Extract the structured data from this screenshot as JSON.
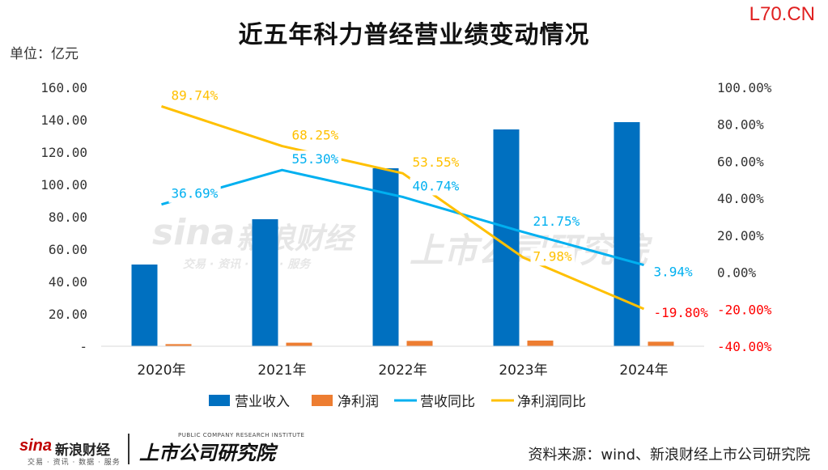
{
  "brand": "L70.CN",
  "title": "近五年科力普经营业绩变动情况",
  "unit": "单位：亿元",
  "watermark": {
    "sina": "sina",
    "sina_cn": "新浪财经",
    "sina_sub": "交易 · 资讯 · 数据 · 服务",
    "research": "上市公司研究院"
  },
  "footer": {
    "logo_sina": "sina",
    "logo_sina_cn": "新浪财经",
    "logo_sina_sub": "交易 · 资讯 · 数据 · 服务",
    "logo_research": "上市公司研究院",
    "logo_research_en": "PUBLIC COMPANY RESEARCH INSTITUTE",
    "source": "资料来源：wind、新浪财经上市公司研究院"
  },
  "colors": {
    "revenue": "#0070c0",
    "profit": "#ed7d31",
    "revenue_yoy": "#00b0f0",
    "profit_yoy": "#ffc000",
    "negative": "#ff0000"
  },
  "chart_data": {
    "type": "bar",
    "categories": [
      "2020年",
      "2021年",
      "2022年",
      "2023年",
      "2024年"
    ],
    "left_axis": {
      "ticks": [
        "160.00",
        "140.00",
        "120.00",
        "100.00",
        "80.00",
        "60.00",
        "40.00",
        "20.00",
        "-"
      ],
      "ylim": [
        0,
        160
      ]
    },
    "right_axis": {
      "ticks": [
        "100.00%",
        "80.00%",
        "60.00%",
        "40.00%",
        "20.00%",
        "0.00%",
        "-20.00%",
        "-40.00%"
      ],
      "ylim": [
        -40,
        100
      ]
    },
    "series": [
      {
        "name": "营业收入",
        "type": "bar",
        "axis": "left",
        "values": [
          50.5,
          78.5,
          110.0,
          134.0,
          138.5
        ]
      },
      {
        "name": "净利润",
        "type": "bar",
        "axis": "left",
        "values": [
          1.3,
          2.2,
          3.3,
          3.5,
          2.8
        ]
      },
      {
        "name": "营收同比",
        "type": "line",
        "axis": "right",
        "values": [
          36.69,
          55.3,
          40.74,
          21.75,
          3.94
        ],
        "labels": [
          "36.69%",
          "55.30%",
          "40.74%",
          "21.75%",
          "3.94%"
        ]
      },
      {
        "name": "净利润同比",
        "type": "line",
        "axis": "right",
        "values": [
          89.74,
          68.25,
          53.55,
          7.98,
          -19.8
        ],
        "labels": [
          "89.74%",
          "68.25%",
          "53.55%",
          "7.98%",
          "-19.80%"
        ]
      }
    ],
    "legend": [
      "营业收入",
      "净利润",
      "营收同比",
      "净利润同比"
    ],
    "legend_position": "bottom"
  }
}
